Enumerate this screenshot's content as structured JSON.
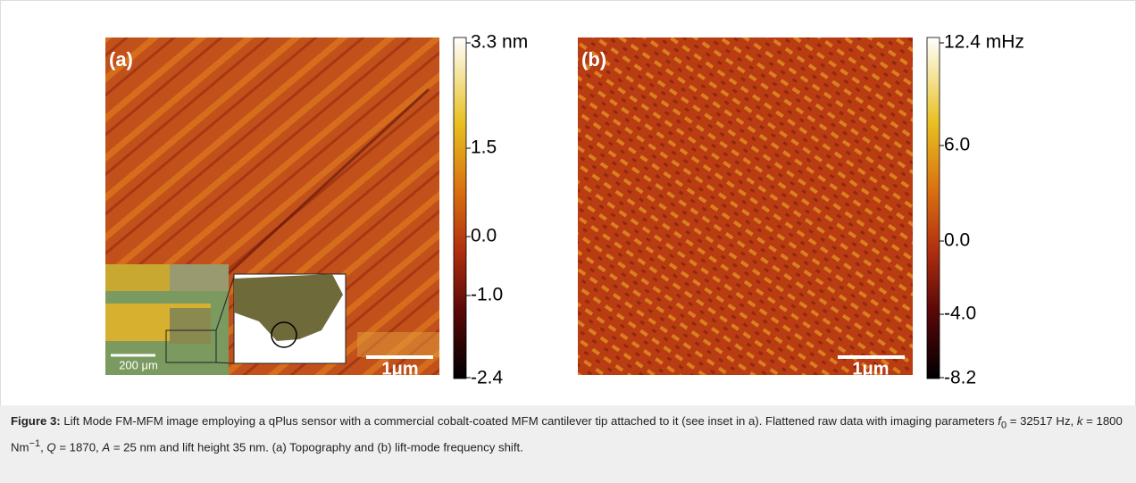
{
  "figure": {
    "panels": [
      {
        "label": "(a)",
        "colorbar": {
          "ticks": [
            "3.3 nm",
            "1.5",
            "0.0",
            "-1.0",
            "-2.4"
          ]
        },
        "scale_bar": "1μm",
        "inset_scale_bar": "200 μm"
      },
      {
        "label": "(b)",
        "colorbar": {
          "ticks": [
            "12.4 mHz",
            "6.0",
            "0.0",
            "-4.0",
            "-8.2"
          ]
        },
        "scale_bar": "1μm"
      }
    ]
  },
  "caption": {
    "label": "Figure 3:",
    "segments": [
      " Lift Mode FM-MFM image employing a qPlus sensor with a commercial cobalt-coated MFM cantilever tip attached to it (see inset in a). Flattened raw data with imaging parameters ",
      "f",
      "0",
      " = 32517 Hz, ",
      "k",
      " = 1800 Nm",
      "−1",
      ", ",
      "Q",
      " = 1870, ",
      "A",
      " = 25 nm and lift height 35 nm. (a) Topography and (b) lift-mode frequency shift."
    ]
  }
}
